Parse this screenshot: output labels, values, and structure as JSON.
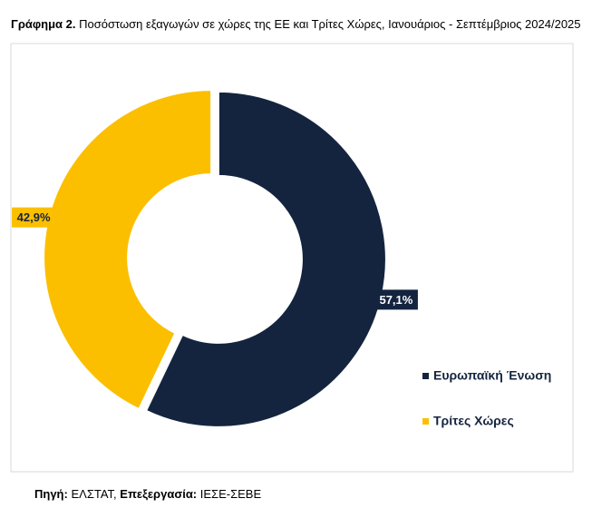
{
  "chart_data": {
    "type": "pie",
    "donut": true,
    "title_label": "Γράφημα 2.",
    "title": "Ποσόστωση εξαγωγών σε χώρες της ΕΕ και Τρίτες Χώρες, Ιανουάριος - Σεπτέμβριος 2024/2025",
    "categories": [
      "Ευρωπαϊκή Ένωση",
      "Τρίτες Χώρες"
    ],
    "values": [
      57.1,
      42.9
    ],
    "value_labels": [
      "57,1%",
      "42,9%"
    ],
    "colors": [
      "#14243f",
      "#fbbf00"
    ],
    "legend": "right"
  },
  "source": {
    "label1": "Πηγή:",
    "text1": "ΕΛΣΤΑΤ,",
    "label2": "Επεξεργασία:",
    "text2": "ΙΕΣΕ-ΣΕΒΕ"
  }
}
